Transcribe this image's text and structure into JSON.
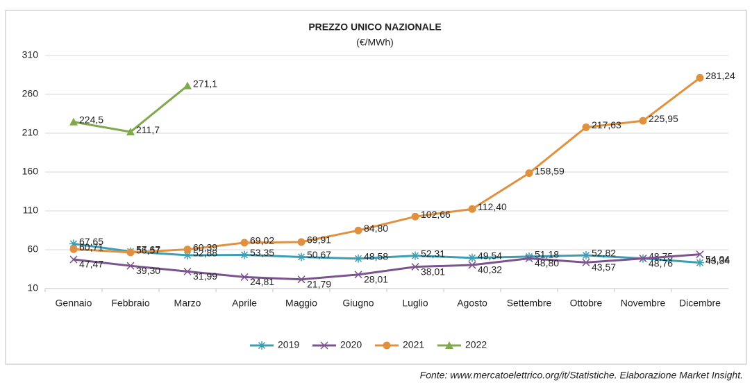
{
  "chart_data": {
    "type": "line",
    "title": "PREZZO UNICO NAZIONALE",
    "subtitle": "(€/MWh)",
    "source": "Fonte: www.mercatoelettrico.org/it/Statistiche. Elaborazione Market Insight.",
    "categories": [
      "Gennaio",
      "Febbraio",
      "Marzo",
      "Aprile",
      "Maggio",
      "Giugno",
      "Luglio",
      "Agosto",
      "Settembre",
      "Ottobre",
      "Novembre",
      "Dicembre"
    ],
    "ylim": [
      10,
      310
    ],
    "yticks": [
      10,
      60,
      110,
      160,
      210,
      260,
      310
    ],
    "grid": true,
    "legend": "bottom",
    "series": [
      {
        "name": "2019",
        "color": "#3c9db3",
        "marker": "asterisk",
        "values": [
          67.65,
          57.67,
          52.88,
          53.35,
          50.67,
          48.58,
          52.31,
          49.54,
          51.18,
          52.82,
          48.75,
          43.34
        ],
        "value_labels": [
          "67,65",
          "57,67",
          "52,88",
          "53,35",
          "50,67",
          "48,58",
          "52,31",
          "49,54",
          "51,18",
          "52,82",
          "48,75",
          "43,34"
        ]
      },
      {
        "name": "2020",
        "color": "#7b548f",
        "marker": "x",
        "values": [
          47.47,
          39.3,
          31.99,
          24.81,
          21.79,
          28.01,
          38.01,
          40.32,
          48.8,
          43.57,
          48.76,
          54.04
        ],
        "value_labels": [
          "47,47",
          "39,30",
          "31,99",
          "24,81",
          "21,79",
          "28,01",
          "38,01",
          "40,32",
          "48,80",
          "43,57",
          "48,76",
          "54,04"
        ]
      },
      {
        "name": "2021",
        "color": "#e0913f",
        "marker": "circle",
        "values": [
          60.71,
          56.57,
          60.39,
          69.02,
          69.91,
          84.8,
          102.66,
          112.4,
          158.59,
          217.63,
          225.95,
          281.24
        ],
        "value_labels": [
          "60,71",
          "56,57",
          "60,39",
          "69,02",
          "69,91",
          "84,80",
          "102,66",
          "112,40",
          "158,59",
          "217,63",
          "225,95",
          "281,24"
        ]
      },
      {
        "name": "2022",
        "color": "#80a84c",
        "marker": "triangle",
        "values": [
          224.5,
          211.7,
          271.1,
          null,
          null,
          null,
          null,
          null,
          null,
          null,
          null,
          null
        ],
        "value_labels": [
          "224,5",
          "211,7",
          "271,1",
          null,
          null,
          null,
          null,
          null,
          null,
          null,
          null,
          null
        ]
      }
    ]
  }
}
